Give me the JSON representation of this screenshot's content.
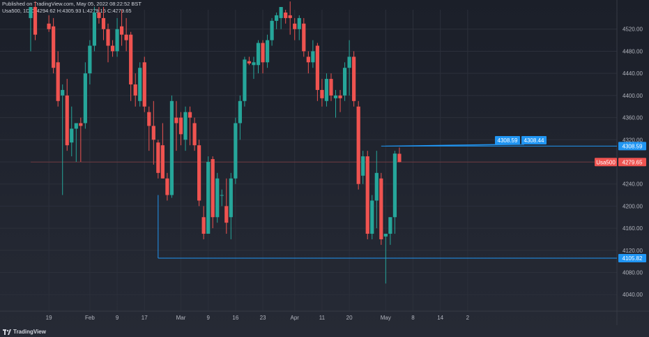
{
  "header": {
    "published": "Published on TradingView.com, May 05, 2022 08:22:52 BST",
    "legend": "Usa500, 1D O:4294.62 H:4305.93 L:4279.15 C:4279.65"
  },
  "footer": {
    "brand": "TradingView"
  },
  "colors": {
    "up": "#26a69a",
    "down": "#ef5350",
    "grid": "#2c303b",
    "axis_text": "#b2b5be",
    "line": "#2196f3",
    "bg": "#1e222d"
  },
  "chart_data": {
    "type": "candlestick",
    "title": "",
    "symbol": "Usa500",
    "timeframe": "1D",
    "ylim": [
      4010,
      4555
    ],
    "y_ticks": [
      4040,
      4080,
      4120,
      4160,
      4200,
      4240,
      4280,
      4320,
      4360,
      4400,
      4440,
      4480,
      4520
    ],
    "x_ticks": [
      {
        "label": "19",
        "x": 4
      },
      {
        "label": "Feb",
        "x": 13
      },
      {
        "label": "9",
        "x": 19
      },
      {
        "label": "17",
        "x": 25
      },
      {
        "label": "Mar",
        "x": 33
      },
      {
        "label": "9",
        "x": 39
      },
      {
        "label": "16",
        "x": 45
      },
      {
        "label": "23",
        "x": 51
      },
      {
        "label": "Apr",
        "x": 58
      },
      {
        "label": "11",
        "x": 64
      },
      {
        "label": "20",
        "x": 70
      },
      {
        "label": "May",
        "x": 78
      },
      {
        "label": "8",
        "x": 84
      },
      {
        "label": "14",
        "x": 90
      },
      {
        "label": "2",
        "x": 96
      }
    ],
    "candles": [
      {
        "x": 0,
        "o": 4540,
        "h": 4560,
        "l": 4480,
        "c": 4560
      },
      {
        "x": 1,
        "o": 4560,
        "h": 4570,
        "l": 4500,
        "c": 4510
      },
      {
        "x": 4,
        "o": 4530,
        "h": 4545,
        "l": 4515,
        "c": 4520
      },
      {
        "x": 5,
        "o": 4525,
        "h": 4540,
        "l": 4440,
        "c": 4450
      },
      {
        "x": 6,
        "o": 4460,
        "h": 4480,
        "l": 4380,
        "c": 4390
      },
      {
        "x": 7,
        "o": 4400,
        "h": 4420,
        "l": 4220,
        "c": 4410
      },
      {
        "x": 8,
        "o": 4400,
        "h": 4430,
        "l": 4300,
        "c": 4310
      },
      {
        "x": 9,
        "o": 4315,
        "h": 4380,
        "l": 4290,
        "c": 4340
      },
      {
        "x": 10,
        "o": 4340,
        "h": 4350,
        "l": 4280,
        "c": 4350
      },
      {
        "x": 11,
        "o": 4350,
        "h": 4360,
        "l": 4280,
        "c": 4345
      },
      {
        "x": 12,
        "o": 4350,
        "h": 4460,
        "l": 4340,
        "c": 4440
      },
      {
        "x": 13,
        "o": 4440,
        "h": 4500,
        "l": 4420,
        "c": 4490
      },
      {
        "x": 14,
        "o": 4490,
        "h": 4560,
        "l": 4480,
        "c": 4550
      },
      {
        "x": 15,
        "o": 4550,
        "h": 4560,
        "l": 4530,
        "c": 4540
      },
      {
        "x": 16,
        "o": 4540,
        "h": 4560,
        "l": 4500,
        "c": 4520
      },
      {
        "x": 17,
        "o": 4520,
        "h": 4530,
        "l": 4460,
        "c": 4490
      },
      {
        "x": 18,
        "o": 4490,
        "h": 4500,
        "l": 4470,
        "c": 4480
      },
      {
        "x": 19,
        "o": 4480,
        "h": 4540,
        "l": 4470,
        "c": 4520
      },
      {
        "x": 20,
        "o": 4525,
        "h": 4555,
        "l": 4490,
        "c": 4510
      },
      {
        "x": 21,
        "o": 4510,
        "h": 4540,
        "l": 4480,
        "c": 4500
      },
      {
        "x": 22,
        "o": 4510,
        "h": 4515,
        "l": 4390,
        "c": 4420
      },
      {
        "x": 23,
        "o": 4420,
        "h": 4440,
        "l": 4380,
        "c": 4400
      },
      {
        "x": 24,
        "o": 4390,
        "h": 4460,
        "l": 4380,
        "c": 4450
      },
      {
        "x": 25,
        "o": 4460,
        "h": 4470,
        "l": 4370,
        "c": 4380
      },
      {
        "x": 26,
        "o": 4370,
        "h": 4380,
        "l": 4300,
        "c": 4345
      },
      {
        "x": 27,
        "o": 4345,
        "h": 4390,
        "l": 4275,
        "c": 4320
      },
      {
        "x": 28,
        "o": 4315,
        "h": 4320,
        "l": 4250,
        "c": 4260
      },
      {
        "x": 29,
        "o": 4310,
        "h": 4350,
        "l": 4250,
        "c": 4250
      },
      {
        "x": 30,
        "o": 4250,
        "h": 4260,
        "l": 4210,
        "c": 4220
      },
      {
        "x": 31,
        "o": 4220,
        "h": 4400,
        "l": 4215,
        "c": 4390
      },
      {
        "x": 32,
        "o": 4360,
        "h": 4390,
        "l": 4300,
        "c": 4350
      },
      {
        "x": 33,
        "o": 4360,
        "h": 4370,
        "l": 4310,
        "c": 4330
      },
      {
        "x": 34,
        "o": 4320,
        "h": 4380,
        "l": 4300,
        "c": 4370
      },
      {
        "x": 35,
        "o": 4370,
        "h": 4380,
        "l": 4310,
        "c": 4360
      },
      {
        "x": 36,
        "o": 4350,
        "h": 4360,
        "l": 4300,
        "c": 4310
      },
      {
        "x": 37,
        "o": 4310,
        "h": 4320,
        "l": 4200,
        "c": 4210
      },
      {
        "x": 38,
        "o": 4180,
        "h": 4200,
        "l": 4140,
        "c": 4150
      },
      {
        "x": 39,
        "o": 4150,
        "h": 4290,
        "l": 4150,
        "c": 4280
      },
      {
        "x": 40,
        "o": 4285,
        "h": 4290,
        "l": 4160,
        "c": 4180
      },
      {
        "x": 41,
        "o": 4180,
        "h": 4260,
        "l": 4170,
        "c": 4250
      },
      {
        "x": 42,
        "o": 4220,
        "h": 4230,
        "l": 4200,
        "c": 4220
      },
      {
        "x": 43,
        "o": 4200,
        "h": 4250,
        "l": 4150,
        "c": 4170
      },
      {
        "x": 44,
        "o": 4180,
        "h": 4260,
        "l": 4140,
        "c": 4250
      },
      {
        "x": 45,
        "o": 4250,
        "h": 4360,
        "l": 4240,
        "c": 4350
      },
      {
        "x": 46,
        "o": 4350,
        "h": 4400,
        "l": 4320,
        "c": 4390
      },
      {
        "x": 47,
        "o": 4390,
        "h": 4470,
        "l": 4380,
        "c": 4465
      },
      {
        "x": 48,
        "o": 4462,
        "h": 4470,
        "l": 4455,
        "c": 4458
      },
      {
        "x": 49,
        "o": 4455,
        "h": 4470,
        "l": 4430,
        "c": 4460
      },
      {
        "x": 50,
        "o": 4455,
        "h": 4500,
        "l": 4440,
        "c": 4495
      },
      {
        "x": 51,
        "o": 4495,
        "h": 4500,
        "l": 4440,
        "c": 4460
      },
      {
        "x": 52,
        "o": 4460,
        "h": 4510,
        "l": 4450,
        "c": 4500
      },
      {
        "x": 53,
        "o": 4500,
        "h": 4540,
        "l": 4490,
        "c": 4535
      },
      {
        "x": 54,
        "o": 4535,
        "h": 4550,
        "l": 4520,
        "c": 4545
      },
      {
        "x": 55,
        "o": 4540,
        "h": 4560,
        "l": 4520,
        "c": 4560
      },
      {
        "x": 56,
        "o": 4550,
        "h": 4555,
        "l": 4530,
        "c": 4540
      },
      {
        "x": 57,
        "o": 4545,
        "h": 4570,
        "l": 4510,
        "c": 4540
      },
      {
        "x": 58,
        "o": 4530,
        "h": 4540,
        "l": 4500,
        "c": 4520
      },
      {
        "x": 59,
        "o": 4520,
        "h": 4545,
        "l": 4500,
        "c": 4540
      },
      {
        "x": 60,
        "o": 4530,
        "h": 4540,
        "l": 4470,
        "c": 4480
      },
      {
        "x": 61,
        "o": 4470,
        "h": 4480,
        "l": 4440,
        "c": 4460
      },
      {
        "x": 62,
        "o": 4460,
        "h": 4500,
        "l": 4450,
        "c": 4480
      },
      {
        "x": 63,
        "o": 4490,
        "h": 4495,
        "l": 4390,
        "c": 4410
      },
      {
        "x": 64,
        "o": 4410,
        "h": 4430,
        "l": 4380,
        "c": 4395
      },
      {
        "x": 65,
        "o": 4390,
        "h": 4440,
        "l": 4380,
        "c": 4430
      },
      {
        "x": 66,
        "o": 4430,
        "h": 4440,
        "l": 4390,
        "c": 4400
      },
      {
        "x": 67,
        "o": 4395,
        "h": 4410,
        "l": 4360,
        "c": 4400
      },
      {
        "x": 68,
        "o": 4400,
        "h": 4410,
        "l": 4370,
        "c": 4395
      },
      {
        "x": 69,
        "o": 4400,
        "h": 4460,
        "l": 4390,
        "c": 4450
      },
      {
        "x": 70,
        "o": 4450,
        "h": 4500,
        "l": 4400,
        "c": 4470
      },
      {
        "x": 71,
        "o": 4470,
        "h": 4480,
        "l": 4380,
        "c": 4390
      },
      {
        "x": 72,
        "o": 4380,
        "h": 4390,
        "l": 4230,
        "c": 4240
      },
      {
        "x": 73,
        "o": 4255,
        "h": 4300,
        "l": 4240,
        "c": 4290
      },
      {
        "x": 74,
        "o": 4290,
        "h": 4300,
        "l": 4140,
        "c": 4150
      },
      {
        "x": 75,
        "o": 4150,
        "h": 4220,
        "l": 4140,
        "c": 4210
      },
      {
        "x": 76,
        "o": 4210,
        "h": 4300,
        "l": 4160,
        "c": 4260
      },
      {
        "x": 77,
        "o": 4250,
        "h": 4260,
        "l": 4130,
        "c": 4140
      },
      {
        "x": 78,
        "o": 4145,
        "h": 4150,
        "l": 4060,
        "c": 4150
      },
      {
        "x": 79,
        "o": 4150,
        "h": 4180,
        "l": 4130,
        "c": 4180
      },
      {
        "x": 80,
        "o": 4180,
        "h": 4300,
        "l": 4150,
        "c": 4295
      },
      {
        "x": 81,
        "o": 4294.62,
        "h": 4305.93,
        "l": 4279.15,
        "c": 4279.65
      }
    ],
    "axis_labels": [
      {
        "label": "4308.59",
        "value": 4308.59,
        "style": "blue"
      },
      {
        "label": "Usa500",
        "value": 4279.65,
        "style": "red"
      },
      {
        "label": "4279.65",
        "value": 4279.65,
        "style": "red"
      },
      {
        "label": "4105.82",
        "value": 4105.82,
        "style": "blue"
      }
    ],
    "annotations": [
      {
        "label": "4308.59",
        "x": 78,
        "value": 4308.59
      },
      {
        "label": "4308.44",
        "x": 81,
        "value": 4308.44
      }
    ],
    "horizontal_lines": [
      {
        "value": 4308.59,
        "from_x": 77,
        "color": "blue"
      },
      {
        "value": 4105.82,
        "from_x": 28,
        "color": "blue"
      },
      {
        "value": 4279.65,
        "from_x": 0,
        "color": "red",
        "faint": true
      }
    ],
    "vertical_lines": [
      {
        "x": 28,
        "from": 4220,
        "to": 4105.82
      }
    ]
  }
}
